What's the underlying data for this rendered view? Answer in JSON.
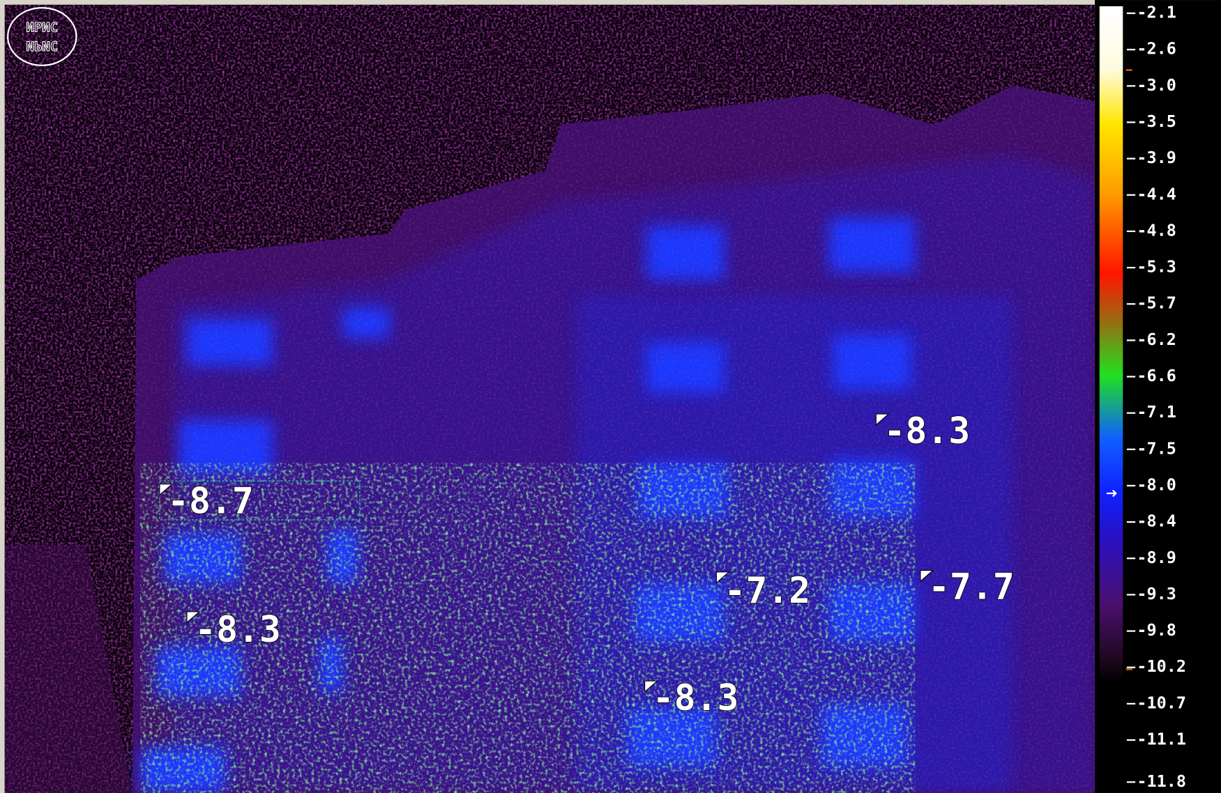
{
  "logo": {
    "text": "ИРИС"
  },
  "scale": {
    "labels": [
      "-2.1",
      "-2.6",
      "-3.0",
      "-3.5",
      "-3.9",
      "-4.4",
      "-4.8",
      "-5.3",
      "-5.7",
      "-6.2",
      "-6.6",
      "-7.1",
      "-7.5",
      "-8.0",
      "-8.4",
      "-8.9",
      "-9.3",
      "-9.8",
      "-10.2",
      "-10.7",
      "-11.1",
      "-11.8"
    ]
  },
  "markers": [
    {
      "label": "-8.3"
    },
    {
      "label": "-8.7"
    },
    {
      "label": "-7.2"
    },
    {
      "label": "-7.7"
    },
    {
      "label": "-8.3"
    },
    {
      "label": "-8.3"
    }
  ]
}
